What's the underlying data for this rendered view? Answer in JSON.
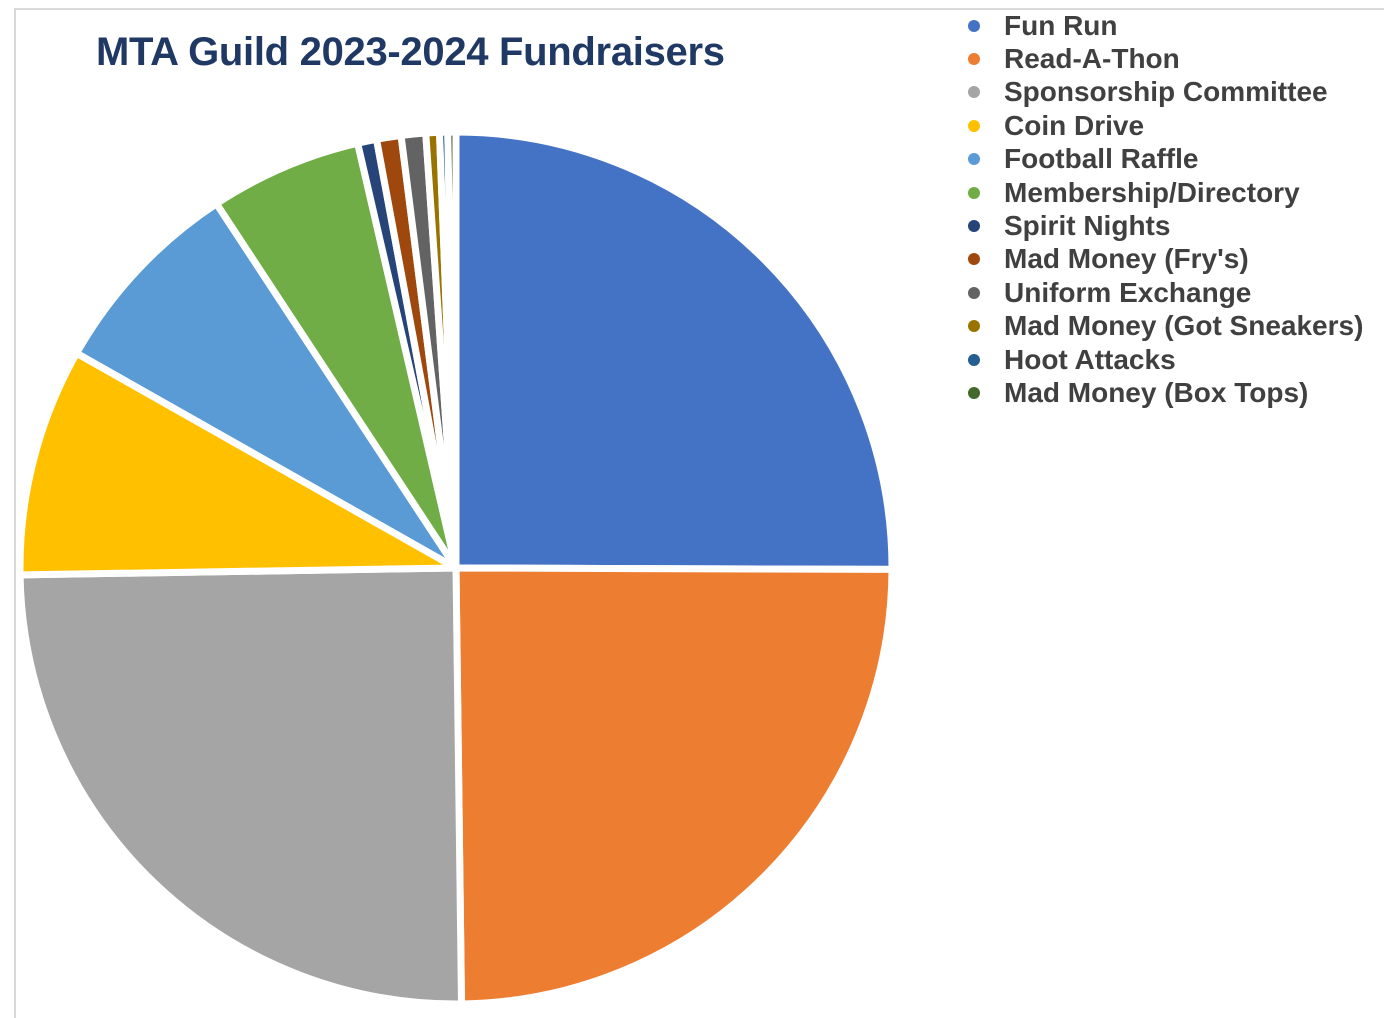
{
  "chart_data": {
    "type": "pie",
    "title": "MTA Guild 2023-2024 Fundraisers",
    "legend_position": "top-right",
    "slices": [
      {
        "label": "Fun Run",
        "value": 24.9,
        "color": "#4472c4"
      },
      {
        "label": "Read-A-Thon",
        "value": 24.6,
        "color": "#ed7d31"
      },
      {
        "label": "Sponsorship Committee",
        "value": 24.8,
        "color": "#a5a5a5"
      },
      {
        "label": "Coin Drive",
        "value": 8.4,
        "color": "#ffc000"
      },
      {
        "label": "Football Raffle",
        "value": 7.5,
        "color": "#5b9bd5"
      },
      {
        "label": "Membership/Directory",
        "value": 5.6,
        "color": "#70ad47"
      },
      {
        "label": "Spirit Nights",
        "value": 0.7,
        "color": "#264478"
      },
      {
        "label": "Mad Money (Fry's)",
        "value": 0.9,
        "color": "#9e480e"
      },
      {
        "label": "Uniform Exchange",
        "value": 0.9,
        "color": "#636363"
      },
      {
        "label": "Mad Money (Got Sneakers)",
        "value": 0.5,
        "color": "#997300"
      },
      {
        "label": "Hoot Attacks",
        "value": 0.3,
        "color": "#255e91"
      },
      {
        "label": "Mad Money (Box Tops)",
        "value": 0.3,
        "color": "#43682b"
      }
    ]
  }
}
